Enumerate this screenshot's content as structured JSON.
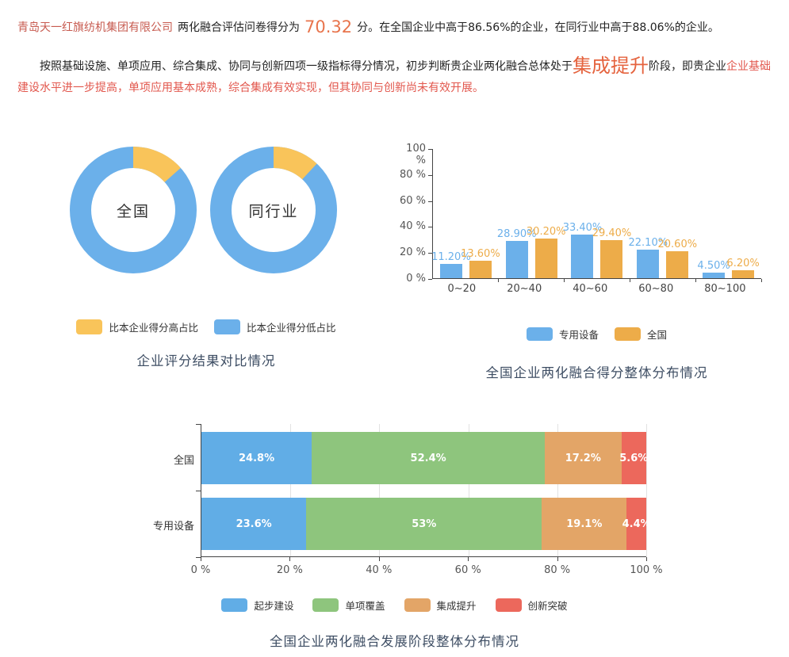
{
  "intro": {
    "company": "青岛天一红旗纺机集团有限公司",
    "score_label": "两化融合评估问卷得分为",
    "score": "70.32",
    "score_rest": "分。在全国企业中高于86.56%的企业，在同行业中高于88.06%的企业。",
    "analysis_lead": "按照基础设施、单项应用、综合集成、协同与创新四项一级指标得分情况，初步判断贵企业两化融合总体处于",
    "analysis_stage": "集成提升",
    "analysis_mid": "阶段，即贵企业",
    "analysis_rest": "企业基础建设水平进一步提高，单项应用基本成熟，综合集成有效实现，但其协同与创新尚未有效开展。"
  },
  "colors": {
    "company_name": "#c75b50",
    "score_accent": "#e8744c",
    "stage_accent": "#e5633e",
    "red_text": "#e2574d",
    "chart_title": "#3d4d63"
  },
  "chart_data": [
    {
      "type": "pie",
      "subtype": "donut-pair",
      "title": "企业评分结果对比情况",
      "legend_position": "bottom",
      "donuts": [
        {
          "label": "全国",
          "slices": [
            {
              "name": "比本企业得分高占比",
              "value": 13.44
            },
            {
              "name": "比本企业得分低占比",
              "value": 86.56
            }
          ]
        },
        {
          "label": "同行业",
          "slices": [
            {
              "name": "比本企业得分高占比",
              "value": 11.94
            },
            {
              "name": "比本企业得分低占比",
              "value": 88.06
            }
          ]
        }
      ],
      "legend": [
        {
          "label": "比本企业得分高占比",
          "color": "#f9c45a"
        },
        {
          "label": "比本企业得分低占比",
          "color": "#6bb0ea"
        }
      ]
    },
    {
      "type": "bar",
      "title": "全国企业两化融合得分整体分布情况",
      "categories": [
        "0~20",
        "20~40",
        "40~60",
        "60~80",
        "80~100"
      ],
      "series": [
        {
          "name": "专用设备",
          "color": "#6bb0ea",
          "values": [
            11.2,
            28.9,
            33.4,
            22.1,
            4.5
          ]
        },
        {
          "name": "全国",
          "color": "#edac49",
          "values": [
            13.6,
            30.2,
            29.4,
            20.6,
            6.2
          ]
        }
      ],
      "ylim": [
        0,
        100
      ],
      "yticks": [
        "100 %",
        "80 %",
        "60 %",
        "40 %",
        "20 %",
        "0 %"
      ],
      "value_label_decimals": 2,
      "grid": false,
      "legend_position": "bottom"
    },
    {
      "type": "bar",
      "subtype": "horizontal-stacked",
      "title": "全国企业两化融合发展阶段整体分布情况",
      "categories": [
        "全国",
        "专用设备"
      ],
      "series": [
        {
          "name": "起步建设",
          "color": "#61ade6",
          "values": [
            24.8,
            23.6
          ]
        },
        {
          "name": "单项覆盖",
          "color": "#8ec57d",
          "values": [
            52.4,
            53
          ]
        },
        {
          "name": "集成提升",
          "color": "#e3a567",
          "values": [
            17.2,
            19.1
          ]
        },
        {
          "name": "创新突破",
          "color": "#ec685c",
          "values": [
            5.6,
            4.4
          ]
        }
      ],
      "xlim": [
        0,
        100
      ],
      "xticks": [
        "0 %",
        "20 %",
        "40 %",
        "60 %",
        "80 %",
        "100 %"
      ],
      "grid": true,
      "legend_position": "bottom"
    }
  ]
}
